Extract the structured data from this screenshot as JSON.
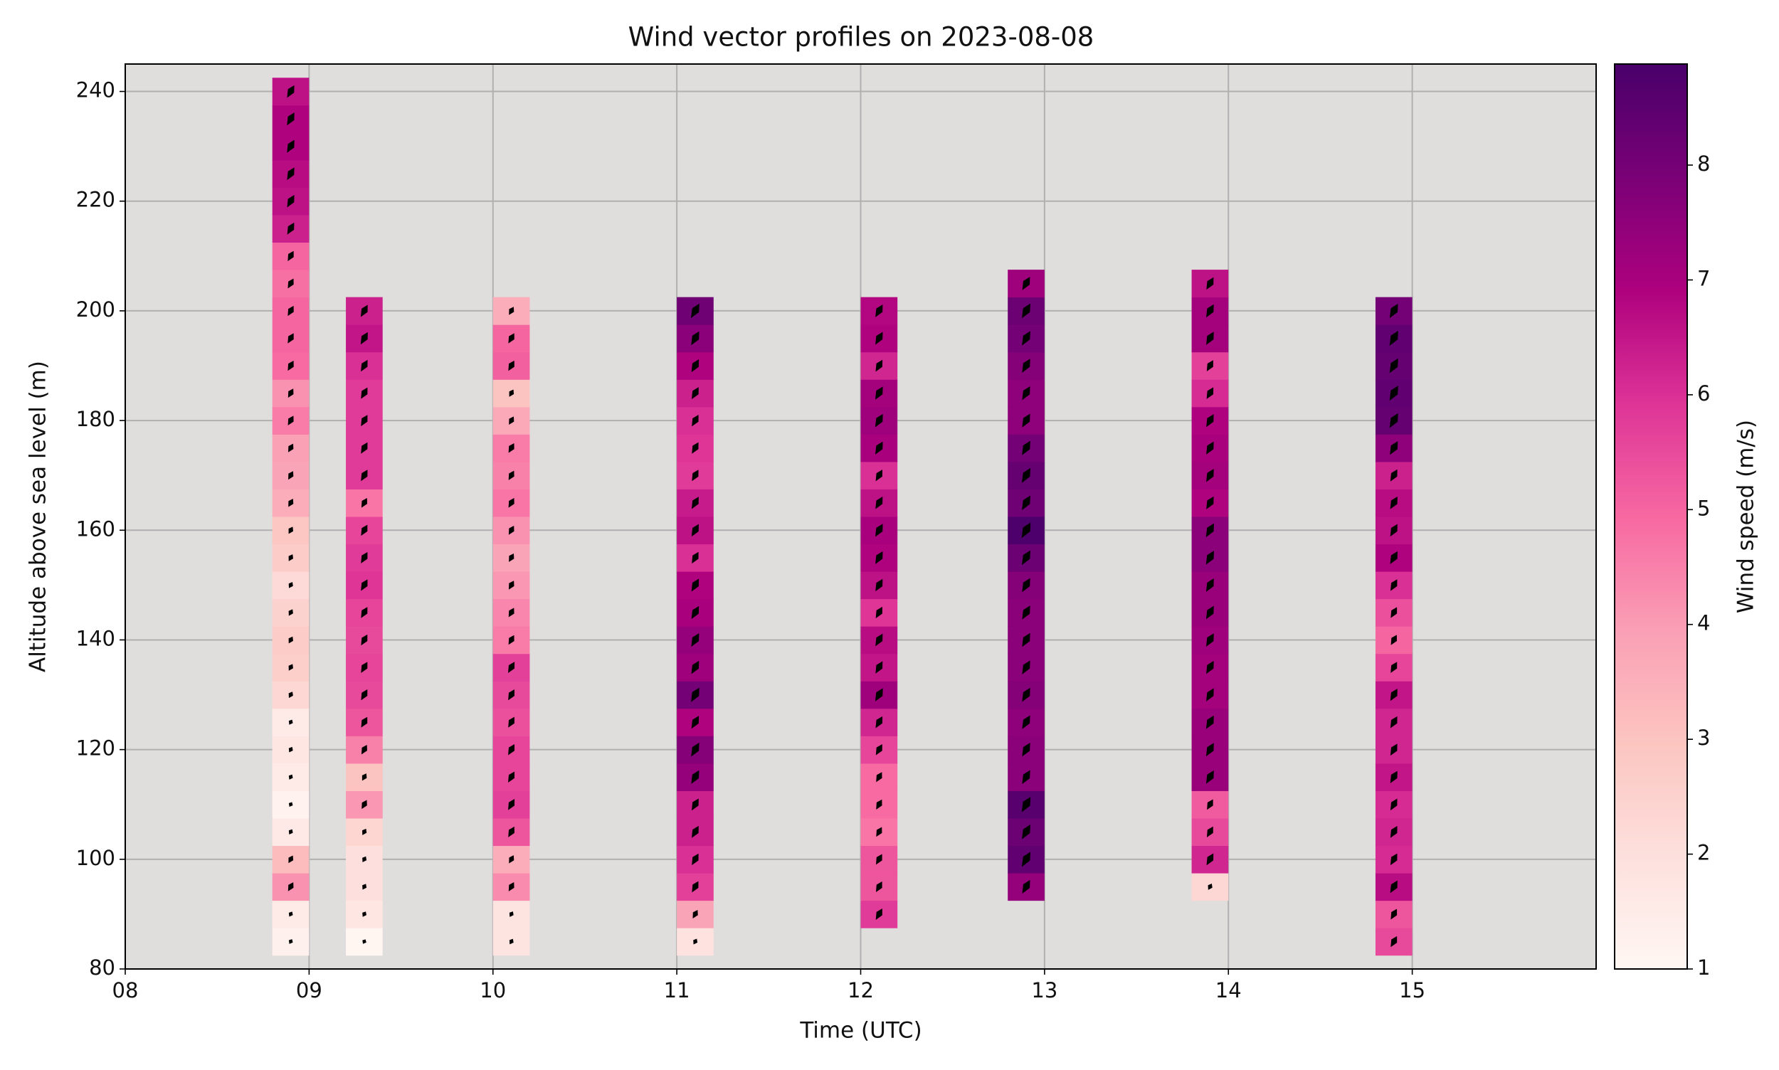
{
  "chart_data": {
    "type": "wind-profile",
    "title": "Wind vector profiles on 2023-08-08",
    "x_label": "Time (UTC)",
    "y_label": "Altitude above sea level (m)",
    "colorbar_label": "Wind speed (m/s)",
    "colormap": "RdPu",
    "clim": [
      1,
      8.88
    ],
    "cticks": [
      1,
      2,
      3,
      4,
      5,
      6,
      7,
      8
    ],
    "xlim": [
      8,
      16
    ],
    "xticks": [
      {
        "value": 8,
        "label": "08"
      },
      {
        "value": 9,
        "label": "09"
      },
      {
        "value": 10,
        "label": "10"
      },
      {
        "value": 11,
        "label": "11"
      },
      {
        "value": 12,
        "label": "12"
      },
      {
        "value": 13,
        "label": "13"
      },
      {
        "value": 14,
        "label": "14"
      },
      {
        "value": 15,
        "label": "15"
      }
    ],
    "ylim": [
      80,
      245
    ],
    "yticks": [
      80,
      100,
      120,
      140,
      160,
      180,
      200,
      220,
      240
    ],
    "grid": true,
    "series": [
      {
        "x": 8.9,
        "y": [
          85,
          90,
          95,
          100,
          105,
          110,
          115,
          120,
          125,
          130,
          135,
          140,
          145,
          150,
          155,
          160,
          165,
          170,
          175,
          180,
          185,
          190,
          195,
          200,
          205,
          210,
          215,
          220,
          225,
          230,
          235,
          240
        ],
        "values": [
          1.3,
          1.5,
          4.2,
          3.2,
          1.6,
          1.2,
          1.5,
          1.7,
          1.5,
          2.3,
          2.6,
          2.7,
          2.5,
          2.2,
          2.7,
          2.9,
          3.6,
          3.8,
          3.9,
          4.6,
          4.2,
          4.9,
          5.0,
          5.0,
          4.8,
          5.0,
          6.3,
          6.6,
          6.7,
          6.9,
          6.9,
          6.6
        ]
      },
      {
        "x": 9.3,
        "y": [
          85,
          90,
          95,
          100,
          105,
          110,
          115,
          120,
          125,
          130,
          135,
          140,
          145,
          150,
          155,
          160,
          165,
          170,
          175,
          180,
          185,
          190,
          195,
          200
        ],
        "values": [
          1.1,
          1.7,
          2.0,
          2.0,
          2.4,
          4.1,
          3.0,
          4.5,
          5.3,
          5.5,
          5.6,
          5.5,
          5.6,
          5.9,
          5.8,
          5.6,
          4.7,
          5.8,
          5.8,
          5.8,
          5.8,
          6.0,
          6.5,
          6.3
        ]
      },
      {
        "x": 10.1,
        "y": [
          85,
          90,
          95,
          100,
          105,
          110,
          115,
          120,
          125,
          130,
          135,
          140,
          145,
          150,
          155,
          160,
          165,
          170,
          175,
          180,
          185,
          190,
          195,
          200
        ],
        "values": [
          1.8,
          1.8,
          4.3,
          3.6,
          5.3,
          5.7,
          5.6,
          5.6,
          5.4,
          5.5,
          5.7,
          4.6,
          4.4,
          4.1,
          3.8,
          4.2,
          4.7,
          4.5,
          4.6,
          3.7,
          3.0,
          5.1,
          5.0,
          3.6
        ]
      },
      {
        "x": 11.1,
        "y": [
          85,
          90,
          95,
          100,
          105,
          110,
          115,
          120,
          125,
          130,
          135,
          140,
          145,
          150,
          155,
          160,
          165,
          170,
          175,
          180,
          185,
          190,
          195,
          200
        ],
        "values": [
          1.9,
          3.8,
          5.7,
          6.0,
          6.3,
          6.3,
          7.4,
          7.7,
          6.9,
          8.0,
          7.2,
          7.4,
          7.0,
          6.9,
          6.0,
          6.6,
          6.4,
          5.8,
          5.9,
          6.0,
          6.3,
          6.9,
          7.6,
          8.1
        ]
      },
      {
        "x": 12.1,
        "y": [
          90,
          95,
          100,
          105,
          110,
          115,
          120,
          125,
          130,
          135,
          140,
          145,
          150,
          155,
          160,
          165,
          170,
          175,
          180,
          185,
          190,
          195,
          200
        ],
        "values": [
          5.8,
          5.3,
          5.3,
          4.7,
          4.9,
          4.9,
          5.6,
          6.2,
          7.2,
          6.5,
          6.7,
          5.9,
          6.6,
          6.9,
          7.0,
          6.6,
          6.0,
          7.0,
          7.2,
          7.1,
          6.2,
          6.9,
          6.8
        ]
      },
      {
        "x": 12.9,
        "y": [
          95,
          100,
          105,
          110,
          115,
          120,
          125,
          130,
          135,
          140,
          145,
          150,
          155,
          160,
          165,
          170,
          175,
          180,
          185,
          190,
          195,
          200,
          205
        ],
        "values": [
          7.4,
          8.4,
          8.2,
          8.6,
          7.6,
          7.6,
          7.5,
          7.7,
          7.6,
          7.6,
          7.6,
          7.7,
          8.2,
          8.8,
          8.1,
          8.3,
          8.0,
          7.5,
          7.5,
          7.7,
          8.0,
          8.2,
          7.2
        ]
      },
      {
        "x": 13.9,
        "y": [
          95,
          100,
          105,
          110,
          115,
          120,
          125,
          130,
          135,
          140,
          145,
          150,
          155,
          160,
          165,
          170,
          175,
          180,
          185,
          190,
          195,
          200,
          205
        ],
        "values": [
          2.3,
          6.2,
          5.5,
          5.2,
          7.3,
          7.3,
          7.3,
          7.1,
          7.1,
          7.2,
          7.3,
          7.3,
          7.6,
          7.6,
          6.9,
          7.1,
          7.0,
          6.9,
          6.1,
          5.7,
          7.1,
          7.1,
          6.6
        ]
      },
      {
        "x": 14.9,
        "y": [
          85,
          90,
          95,
          100,
          105,
          110,
          115,
          120,
          125,
          130,
          135,
          140,
          145,
          150,
          155,
          160,
          165,
          170,
          175,
          180,
          185,
          190,
          195,
          200
        ],
        "values": [
          5.5,
          5.3,
          6.7,
          6.1,
          6.2,
          6.1,
          6.5,
          6.2,
          6.2,
          6.5,
          5.6,
          5.0,
          5.4,
          6.0,
          6.9,
          6.6,
          6.7,
          6.3,
          7.5,
          8.3,
          8.4,
          8.3,
          8.4,
          8.0
        ]
      }
    ]
  }
}
